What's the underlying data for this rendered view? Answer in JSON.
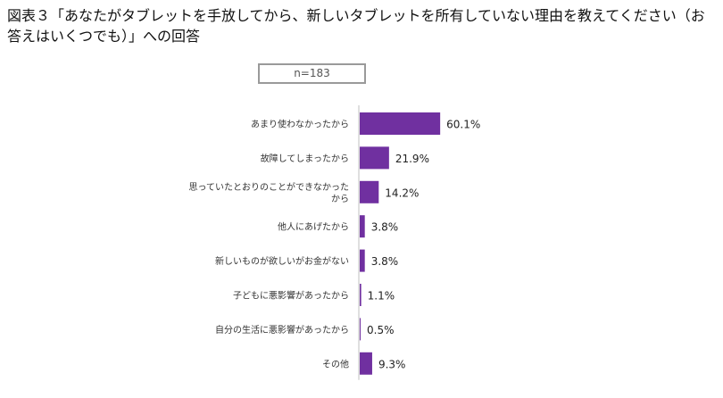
{
  "title": "図表３「あなたがタブレットを手放してから、新しいタブレットを所有していない理由を教えてください（お答えはいくつでも）」への回答",
  "sample_label": "n=183",
  "colors": {
    "bar": "#7030a0",
    "axis": "#bfbfbf"
  },
  "chart_data": {
    "type": "bar",
    "orientation": "horizontal",
    "title": "",
    "xlabel": "",
    "ylabel": "",
    "unit": "%",
    "xlim": [
      0,
      100
    ],
    "grid": false,
    "categories": [
      "あまり使わなかったから",
      "故障してしまったから",
      "思っていたとおりのことができなかったから",
      "他人にあげたから",
      "新しいものが欲しいがお金がない",
      "子どもに悪影響があったから",
      "自分の生活に悪影響があったから",
      "その他"
    ],
    "category_lines": [
      [
        "あまり使わなかったから"
      ],
      [
        "故障してしまったから"
      ],
      [
        "思っていたとおりのことができなかった",
        "から"
      ],
      [
        "他人にあげたから"
      ],
      [
        "新しいものが欲しいがお金がない"
      ],
      [
        "子どもに悪影響があったから"
      ],
      [
        "自分の生活に悪影響があったから"
      ],
      [
        "その他"
      ]
    ],
    "values": [
      60.1,
      21.9,
      14.2,
      3.8,
      3.8,
      1.1,
      0.5,
      9.3
    ],
    "value_labels": [
      "60.1%",
      "21.9%",
      "14.2%",
      "3.8%",
      "3.8%",
      "1.1%",
      "0.5%",
      "9.3%"
    ]
  }
}
